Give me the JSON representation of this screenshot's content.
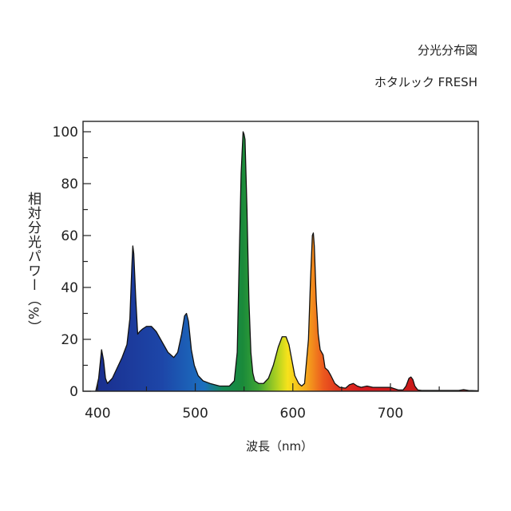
{
  "chart_data": {
    "type": "area",
    "title": "分光分布図",
    "subtitle": "ホタルック FRESH",
    "xlabel": "波長（nm）",
    "ylabel": "相対分光パワー（%）",
    "xlim": [
      385,
      790
    ],
    "ylim": [
      0,
      104
    ],
    "x_ticks": [
      400,
      500,
      600,
      700
    ],
    "y_ticks": [
      0,
      20,
      40,
      60,
      80,
      100
    ],
    "grid": false,
    "series": [
      {
        "x": [
          398,
          401,
          404,
          406,
          408,
          410,
          415,
          420,
          425,
          430,
          433,
          435,
          436,
          437,
          439,
          441,
          443,
          446,
          450,
          455,
          460,
          466,
          472,
          478,
          482,
          486,
          489,
          491,
          493,
          496,
          499,
          503,
          508,
          515,
          525,
          535,
          540,
          543,
          545,
          547,
          549,
          550,
          551,
          553,
          555,
          557,
          559,
          561,
          565,
          570,
          575,
          580,
          585,
          589,
          593,
          596,
          599,
          602,
          606,
          609,
          612,
          616,
          618,
          620,
          621,
          622,
          624,
          626,
          628,
          631,
          633,
          636,
          639,
          643,
          648,
          654,
          658,
          662,
          666,
          670,
          676,
          682,
          688,
          694,
          700,
          704,
          708,
          713,
          716,
          719,
          721,
          723,
          725,
          728,
          732,
          740,
          750,
          760,
          770,
          775,
          780,
          790
        ],
        "y": [
          0,
          5,
          16,
          12,
          5,
          3,
          5,
          9,
          13,
          18,
          28,
          48,
          56,
          53,
          36,
          22,
          23,
          24,
          25,
          25,
          23,
          19,
          15,
          13,
          15,
          22,
          29,
          30,
          27,
          16,
          10,
          6,
          4,
          3,
          2,
          2,
          4,
          15,
          50,
          84,
          100,
          99,
          97,
          70,
          35,
          15,
          7,
          4,
          3,
          3,
          5,
          10,
          17,
          21,
          21,
          18,
          12,
          6,
          3,
          2,
          3,
          20,
          42,
          60,
          61,
          56,
          35,
          22,
          16,
          14,
          9,
          8,
          6,
          3,
          1.5,
          1.2,
          2.5,
          3,
          2,
          1.5,
          2,
          1.5,
          1.5,
          1.5,
          1.5,
          1,
          0.5,
          0.5,
          2,
          5,
          5.5,
          4.5,
          2,
          0.5,
          0.3,
          0.3,
          0.3,
          0.3,
          0.3,
          0.6,
          0.3,
          0.2
        ]
      }
    ]
  }
}
